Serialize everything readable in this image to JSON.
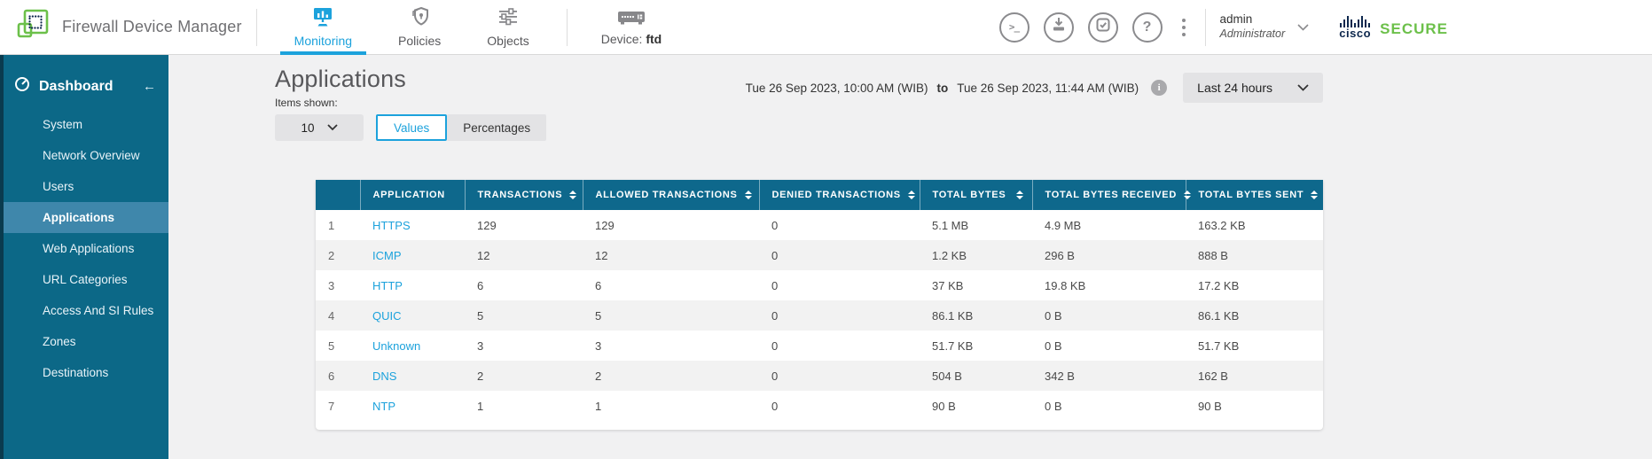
{
  "header": {
    "app_title": "Firewall Device Manager",
    "tabs": [
      {
        "label": "Monitoring",
        "active": true
      },
      {
        "label": "Policies",
        "active": false
      },
      {
        "label": "Objects",
        "active": false
      }
    ],
    "device": {
      "label": "Device:",
      "name": "ftd"
    },
    "action_icons": [
      "cli-console",
      "deploy",
      "tasks",
      "help",
      "more-options"
    ],
    "user": {
      "name": "admin",
      "role": "Administrator"
    },
    "brand": {
      "logo_text": "cisco",
      "product": "SECURE"
    }
  },
  "sidebar": {
    "title": "Dashboard",
    "items": [
      {
        "label": "System",
        "selected": false
      },
      {
        "label": "Network Overview",
        "selected": false
      },
      {
        "label": "Users",
        "selected": false
      },
      {
        "label": "Applications",
        "selected": true
      },
      {
        "label": "Web Applications",
        "selected": false
      },
      {
        "label": "URL Categories",
        "selected": false
      },
      {
        "label": "Access And SI Rules",
        "selected": false
      },
      {
        "label": "Zones",
        "selected": false
      },
      {
        "label": "Destinations",
        "selected": false
      }
    ]
  },
  "main": {
    "title": "Applications",
    "items_shown_label": "Items shown:",
    "items_per_page": "10",
    "view_values_label": "Values",
    "view_percentages_label": "Percentages",
    "active_view": "Values",
    "date_start": "Tue 26 Sep 2023, 10:00 AM (WIB)",
    "date_separator": "to",
    "date_end": "Tue 26 Sep 2023, 11:44 AM (WIB)",
    "time_range": "Last 24 hours"
  },
  "table": {
    "columns": [
      {
        "label": "",
        "sortable": false
      },
      {
        "label": "APPLICATION",
        "sortable": false
      },
      {
        "label": "TRANSACTIONS",
        "sortable": true
      },
      {
        "label": "ALLOWED TRANSACTIONS",
        "sortable": true
      },
      {
        "label": "DENIED TRANSACTIONS",
        "sortable": true
      },
      {
        "label": "TOTAL BYTES",
        "sortable": true
      },
      {
        "label": "TOTAL BYTES RECEIVED",
        "sortable": true
      },
      {
        "label": "TOTAL BYTES SENT",
        "sortable": true
      }
    ],
    "rows": [
      {
        "rank": "1",
        "application": "HTTPS",
        "transactions": "129",
        "allowed_transactions": "129",
        "denied_transactions": "0",
        "total_bytes": "5.1 MB",
        "total_bytes_received": "4.9 MB",
        "total_bytes_sent": "163.2 KB"
      },
      {
        "rank": "2",
        "application": "ICMP",
        "transactions": "12",
        "allowed_transactions": "12",
        "denied_transactions": "0",
        "total_bytes": "1.2 KB",
        "total_bytes_received": "296 B",
        "total_bytes_sent": "888 B"
      },
      {
        "rank": "3",
        "application": "HTTP",
        "transactions": "6",
        "allowed_transactions": "6",
        "denied_transactions": "0",
        "total_bytes": "37 KB",
        "total_bytes_received": "19.8 KB",
        "total_bytes_sent": "17.2 KB"
      },
      {
        "rank": "4",
        "application": "QUIC",
        "transactions": "5",
        "allowed_transactions": "5",
        "denied_transactions": "0",
        "total_bytes": "86.1 KB",
        "total_bytes_received": "0 B",
        "total_bytes_sent": "86.1 KB"
      },
      {
        "rank": "5",
        "application": "Unknown",
        "transactions": "3",
        "allowed_transactions": "3",
        "denied_transactions": "0",
        "total_bytes": "51.7 KB",
        "total_bytes_received": "0 B",
        "total_bytes_sent": "51.7 KB"
      },
      {
        "rank": "6",
        "application": "DNS",
        "transactions": "2",
        "allowed_transactions": "2",
        "denied_transactions": "0",
        "total_bytes": "504 B",
        "total_bytes_received": "342 B",
        "total_bytes_sent": "162 B"
      },
      {
        "rank": "7",
        "application": "NTP",
        "transactions": "1",
        "allowed_transactions": "1",
        "denied_transactions": "0",
        "total_bytes": "90 B",
        "total_bytes_received": "0 B",
        "total_bytes_sent": "90 B"
      }
    ]
  },
  "colors": {
    "accent_blue": "#1CA2DC",
    "sidebar_teal": "#0C6887",
    "sidebar_selected": "#3F87AB",
    "table_header_teal": "#0E688C",
    "brand_green": "#6CC04A",
    "cisco_navy": "#0D274D",
    "row_stripe": "#F2F2F2"
  }
}
